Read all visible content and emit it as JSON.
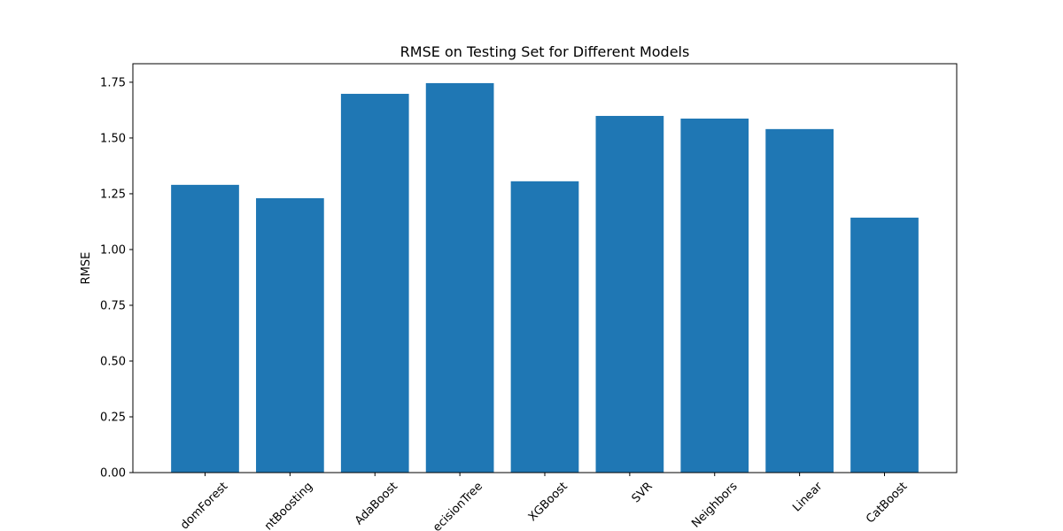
{
  "chart_data": {
    "type": "bar",
    "title": "RMSE on Testing Set for Different Models",
    "y_label": "RMSE",
    "categories": [
      "domForest",
      "ntBoosting",
      "AdaBoost",
      "ecisionTree",
      "XGBoost",
      "SVR",
      "Neighbors",
      "Linear",
      "CatBoost"
    ],
    "values": [
      1.29,
      1.23,
      1.698,
      1.746,
      1.306,
      1.599,
      1.587,
      1.54,
      1.143
    ],
    "color": "#1f77b4",
    "ylim": [
      0,
      1.833
    ],
    "yticks": [
      {
        "value": 0,
        "label": "0.00"
      },
      {
        "value": 0.25,
        "label": "0.25"
      },
      {
        "value": 0.5,
        "label": "0.50"
      },
      {
        "value": 0.75,
        "label": "0.75"
      },
      {
        "value": 1,
        "label": "1.00"
      },
      {
        "value": 1.25,
        "label": "1.25"
      },
      {
        "value": 1.5,
        "label": "1.50"
      },
      {
        "value": 1.75,
        "label": "1.75"
      }
    ],
    "grid": false
  }
}
